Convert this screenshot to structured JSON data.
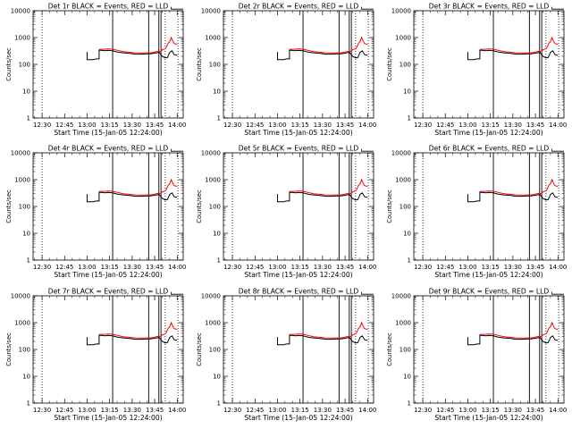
{
  "figure": {
    "xlabel": "Start Time (15-Jan-05 12:24:00)",
    "ylabel": "Counts/sec",
    "x_tick_labels": [
      "12:30",
      "12:45",
      "13:00",
      "13:15",
      "13:30",
      "13:45",
      "14:00"
    ],
    "y_tick_labels": [
      "1",
      "10",
      "100",
      "1000",
      "10000"
    ],
    "colors": {
      "events": "#000000",
      "lld": "#ff0000",
      "axes": "#000000",
      "background": "#ffffff"
    }
  },
  "panels": [
    {
      "title": "Det 1r BLACK = Events, RED = LLD"
    },
    {
      "title": "Det 2r BLACK = Events, RED = LLD"
    },
    {
      "title": "Det 3r BLACK = Events, RED = LLD"
    },
    {
      "title": "Det 4r BLACK = Events, RED = LLD"
    },
    {
      "title": "Det 5r BLACK = Events, RED = LLD"
    },
    {
      "title": "Det 6r BLACK = Events, RED = LLD"
    },
    {
      "title": "Det 7r BLACK = Events, RED = LLD"
    },
    {
      "title": "Det 8r BLACK = Events, RED = LLD"
    },
    {
      "title": "Det 9r BLACK = Events, RED = LLD"
    }
  ],
  "chart_data": {
    "type": "line",
    "x_unit": "minutes after 12:24:00",
    "y_scale": "log",
    "xlim": [
      0,
      100
    ],
    "ylim": [
      1,
      10000
    ],
    "x_ticks": [
      6,
      21,
      36,
      51,
      66,
      81,
      96
    ],
    "y_ticks": [
      1,
      10,
      100,
      1000,
      10000
    ],
    "dotted_vlines": [
      6,
      88,
      96.5
    ],
    "solid_vlines": [
      53,
      77
    ],
    "double_vlines": [
      [
        83.8,
        85.2
      ]
    ],
    "corner_marker": {
      "x": [
        92,
        92,
        100
      ],
      "y": [
        14000,
        11500,
        11500
      ]
    },
    "series": [
      {
        "name": "Events",
        "color": "#000000",
        "points": [
          [
            36,
            290
          ],
          [
            36,
            150
          ],
          [
            38,
            150
          ],
          [
            40,
            150
          ],
          [
            42,
            160
          ],
          [
            44,
            160
          ],
          [
            44,
            340
          ],
          [
            46,
            330
          ],
          [
            48,
            320
          ],
          [
            50,
            330
          ],
          [
            53,
            320
          ],
          [
            56,
            290
          ],
          [
            60,
            270
          ],
          [
            64,
            260
          ],
          [
            68,
            240
          ],
          [
            72,
            240
          ],
          [
            76,
            245
          ],
          [
            78,
            245
          ],
          [
            80,
            255
          ],
          [
            82,
            270
          ],
          [
            84,
            280
          ],
          [
            86,
            200
          ],
          [
            88,
            175
          ],
          [
            89.5,
            180
          ],
          [
            91,
            280
          ],
          [
            92.5,
            320
          ],
          [
            94,
            230
          ],
          [
            96,
            215
          ]
        ]
      },
      {
        "name": "LLD",
        "color": "#ff0000",
        "points": [
          [
            44,
            360
          ],
          [
            46,
            365
          ],
          [
            48,
            370
          ],
          [
            50,
            375
          ],
          [
            53,
            370
          ],
          [
            56,
            335
          ],
          [
            60,
            300
          ],
          [
            64,
            285
          ],
          [
            68,
            270
          ],
          [
            72,
            265
          ],
          [
            76,
            270
          ],
          [
            78,
            270
          ],
          [
            80,
            280
          ],
          [
            82,
            300
          ],
          [
            84,
            310
          ],
          [
            85,
            300
          ],
          [
            86,
            350
          ],
          [
            88,
            380
          ],
          [
            89,
            460
          ],
          [
            90,
            620
          ],
          [
            91,
            700
          ],
          [
            92,
            1000
          ],
          [
            93,
            750
          ],
          [
            94,
            600
          ],
          [
            96,
            560
          ]
        ]
      }
    ]
  }
}
